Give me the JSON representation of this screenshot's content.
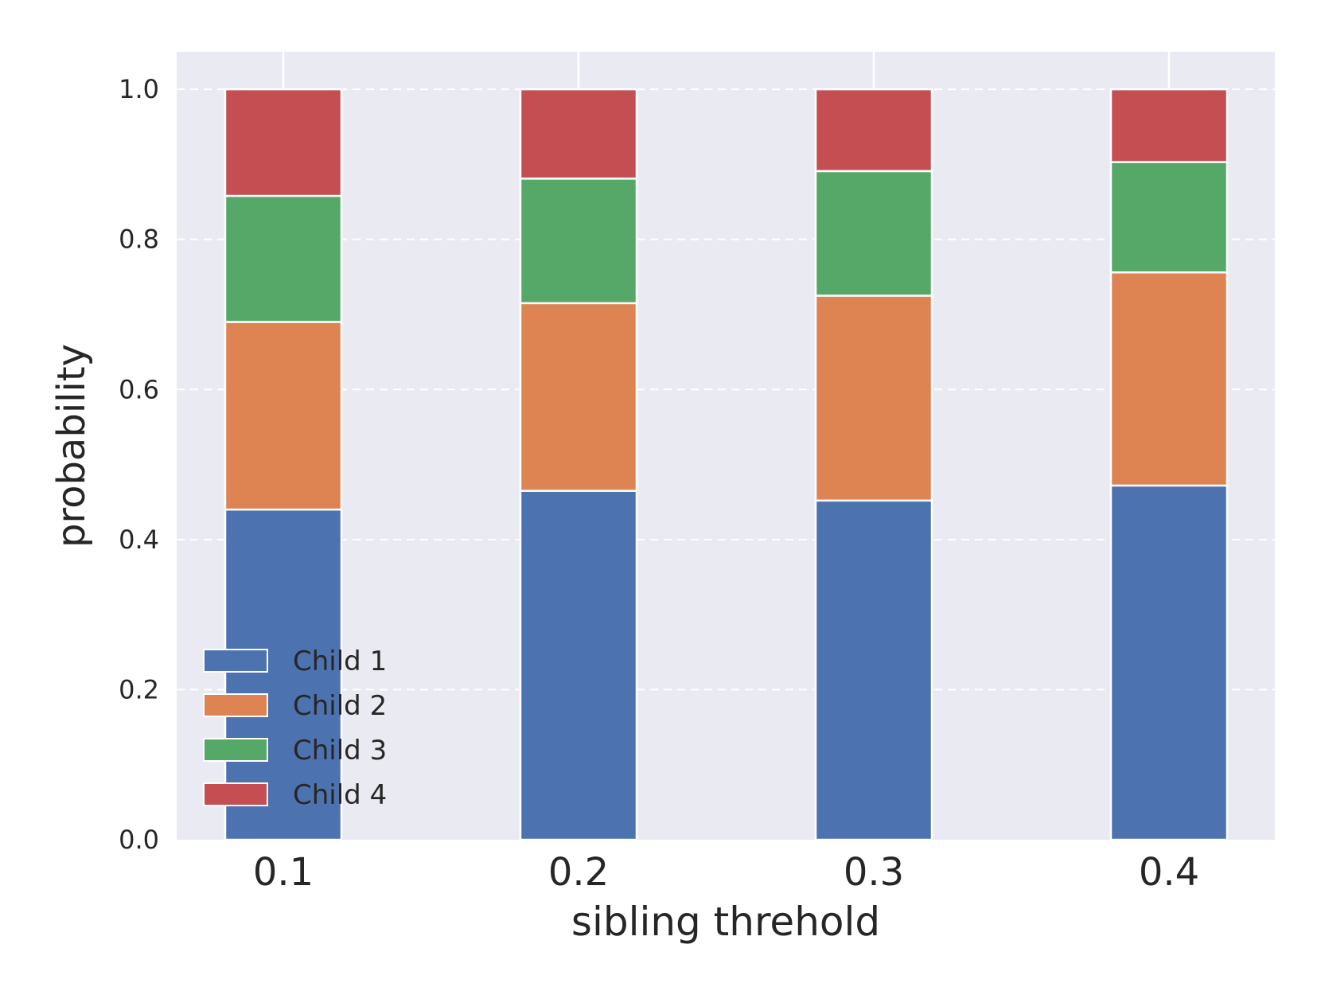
{
  "chart_data": {
    "type": "bar",
    "stacked": true,
    "categories": [
      "0.1",
      "0.2",
      "0.3",
      "0.4"
    ],
    "series": [
      {
        "name": "Child 1",
        "color": "#4c72b0",
        "values": [
          0.44,
          0.465,
          0.452,
          0.472
        ]
      },
      {
        "name": "Child 2",
        "color": "#dd8452",
        "values": [
          0.25,
          0.25,
          0.273,
          0.284
        ]
      },
      {
        "name": "Child 3",
        "color": "#55a868",
        "values": [
          0.168,
          0.166,
          0.166,
          0.147
        ]
      },
      {
        "name": "Child 4",
        "color": "#c44e52",
        "values": [
          0.142,
          0.119,
          0.109,
          0.097
        ]
      }
    ],
    "xlabel": "sibling threhold",
    "ylabel": "probability",
    "ylim": [
      0,
      1.05
    ],
    "yticks": [
      "0.0",
      "0.2",
      "0.4",
      "0.6",
      "0.8",
      "1.0"
    ],
    "ytick_values": [
      0,
      0.2,
      0.4,
      0.6,
      0.8,
      1.0
    ],
    "grid": true,
    "legend_position": "lower-left",
    "background_color": "#eaeaf2"
  }
}
